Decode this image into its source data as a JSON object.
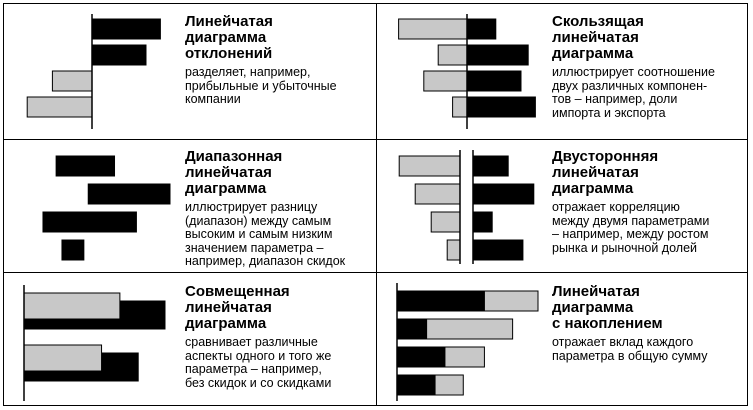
{
  "colors": {
    "dark": "#000000",
    "light": "#c8c8c8",
    "stroke": "#000000"
  },
  "panels": [
    {
      "id": "deviation",
      "title": "Линейчатая\nдиаграмма\nотклонений",
      "desc": "разделяет, например,\nприбыльные и убыточные\nкомпании",
      "kind": "deviation",
      "bars": [
        {
          "v": 0.95,
          "c": "dark"
        },
        {
          "v": 0.75,
          "c": "dark"
        },
        {
          "v": -0.55,
          "c": "light"
        },
        {
          "v": -0.9,
          "c": "light"
        }
      ]
    },
    {
      "id": "sliding",
      "title": "Скользящая\nлинейчатая\nдиаграмма",
      "desc": "иллюстрирует соотношение\nдвух различных компонен-\nтов – например, доли\nимпорта и экспорта",
      "kind": "sliding",
      "bars": [
        {
          "left": 0.95,
          "right": 0.4
        },
        {
          "left": 0.4,
          "right": 0.85
        },
        {
          "left": 0.6,
          "right": 0.75
        },
        {
          "left": 0.2,
          "right": 0.95
        }
      ]
    },
    {
      "id": "range",
      "title": "Диапазонная\nлинейчатая\nдиаграмма",
      "desc": "иллюстрирует разницу\n(диапазон) между самым\nвысоким и самым низким\nзначением параметра –\nнапример, диапазон скидок",
      "kind": "range",
      "bars": [
        {
          "start": 0.22,
          "end": 0.62
        },
        {
          "start": 0.44,
          "end": 1.0
        },
        {
          "start": 0.13,
          "end": 0.77
        },
        {
          "start": 0.26,
          "end": 0.41
        }
      ]
    },
    {
      "id": "twosided",
      "title": "Двусторонняя\nлинейчатая\nдиаграмма",
      "desc": "отражает корреляцию\nмежду двумя параметрами\n– например, между ростом\nрынка и рыночной долей",
      "kind": "twosided",
      "bars": [
        {
          "left": 0.95,
          "right": 0.55
        },
        {
          "left": 0.7,
          "right": 0.95
        },
        {
          "left": 0.45,
          "right": 0.3
        },
        {
          "left": 0.2,
          "right": 0.78
        }
      ]
    },
    {
      "id": "combined",
      "title": "Совмещенная\nлинейчатая\nдиаграмма",
      "desc": "сравнивает различные\nаспекты одного и того же\nпараметра – например,\nбез скидок и со скидками",
      "kind": "combined",
      "bars": [
        {
          "dark": 1.0,
          "light": 0.68
        },
        {
          "dark": 0.81,
          "light": 0.55
        }
      ]
    },
    {
      "id": "stacked",
      "title": "Линейчатая\nдиаграмма\nс накоплением",
      "desc": "отражает вклад каждого\nпараметра в общую сумму",
      "kind": "stacked",
      "bars": [
        {
          "dark": 0.62,
          "light": 0.38
        },
        {
          "dark": 0.21,
          "light": 0.61
        },
        {
          "dark": 0.34,
          "light": 0.28
        },
        {
          "dark": 0.27,
          "light": 0.2
        }
      ]
    }
  ]
}
